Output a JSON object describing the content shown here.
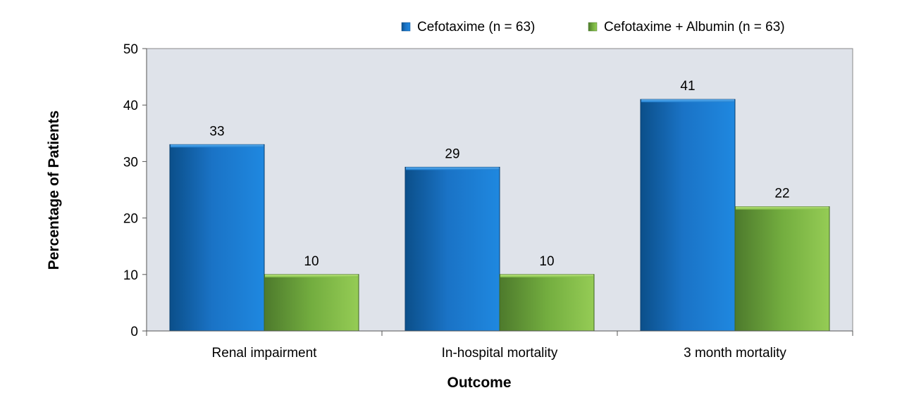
{
  "chart_data": {
    "type": "bar",
    "categories": [
      "Renal impairment",
      "In-hospital mortality",
      "3 month mortality"
    ],
    "series": [
      {
        "name": "Cefotaxime (n = 63)",
        "values": [
          33,
          29,
          41
        ],
        "color": "#1f77c9"
      },
      {
        "name": "Cefotaxime + Albumin (n = 63)",
        "values": [
          10,
          10,
          22
        ],
        "color": "#7cb342"
      }
    ],
    "title": "",
    "xlabel": "Outcome",
    "ylabel": "Percentage of Patients",
    "ylim": [
      0,
      50
    ],
    "yticks": [
      0,
      10,
      20,
      30,
      40,
      50
    ],
    "grid": false,
    "legend": "top-right",
    "plot_background": "#dfe3ea"
  }
}
